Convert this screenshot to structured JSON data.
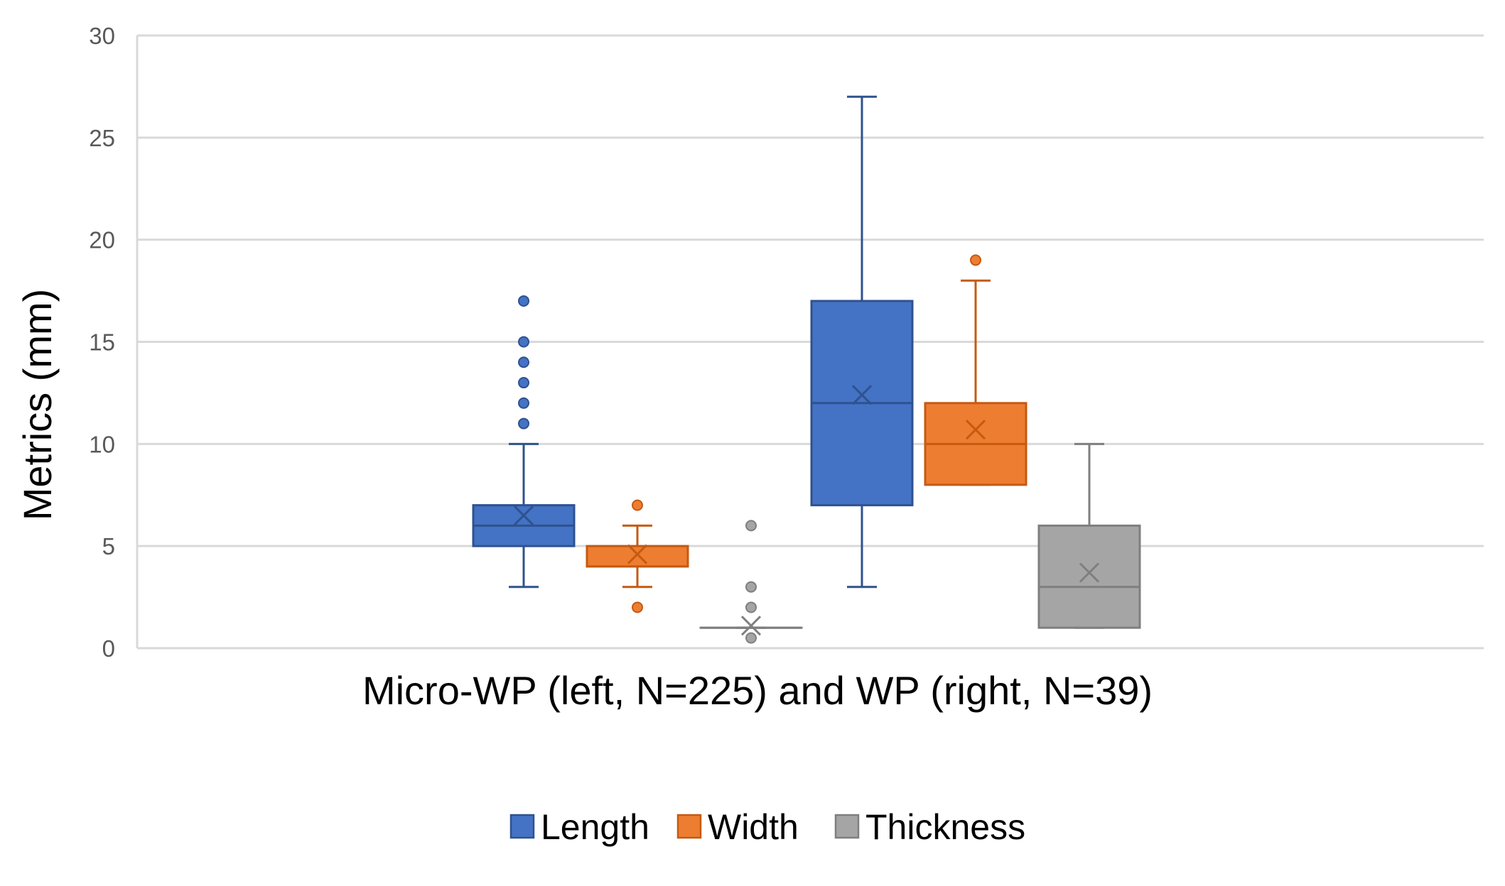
{
  "chart_data": {
    "type": "boxplot",
    "title": "",
    "xlabel": "Micro-WP (left, N=225) and WP (right, N=39)",
    "ylabel": "Metrics (mm)",
    "ylim": [
      0,
      30
    ],
    "yticks": [
      "0",
      "5",
      "10",
      "15",
      "20",
      "25",
      "30"
    ],
    "grid": true,
    "legend_position": "bottom",
    "groups": [
      "Micro-WP",
      "WP"
    ],
    "series": [
      {
        "name": "Length",
        "color": "#4472C4",
        "stroke": "#2F528F",
        "boxes": [
          {
            "group": "Micro-WP",
            "min": 3,
            "q1": 5,
            "median": 6,
            "q3": 7,
            "max": 10,
            "mean": 6.5,
            "outliers": [
              11,
              12,
              13,
              14,
              15,
              17
            ]
          },
          {
            "group": "WP",
            "min": 3,
            "q1": 7,
            "median": 12,
            "q3": 17,
            "max": 27,
            "mean": 12.4,
            "outliers": []
          }
        ]
      },
      {
        "name": "Width",
        "color": "#ED7D31",
        "stroke": "#C55A11",
        "boxes": [
          {
            "group": "Micro-WP",
            "min": 3,
            "q1": 4,
            "median": 4,
            "q3": 5,
            "max": 6,
            "mean": 4.6,
            "outliers": [
              2,
              7
            ]
          },
          {
            "group": "WP",
            "min": 8,
            "q1": 8,
            "median": 10,
            "q3": 12,
            "max": 18,
            "mean": 10.7,
            "outliers": [
              19
            ]
          }
        ]
      },
      {
        "name": "Thickness",
        "color": "#A5A5A5",
        "stroke": "#7F7F7F",
        "boxes": [
          {
            "group": "Micro-WP",
            "min": 1,
            "q1": 1,
            "median": 1,
            "q3": 1,
            "max": 1,
            "mean": 1.1,
            "outliers": [
              0.5,
              2,
              3,
              6
            ]
          },
          {
            "group": "WP",
            "min": 1,
            "q1": 1,
            "median": 3,
            "q3": 6,
            "max": 10,
            "mean": 3.7,
            "outliers": []
          }
        ]
      }
    ]
  }
}
